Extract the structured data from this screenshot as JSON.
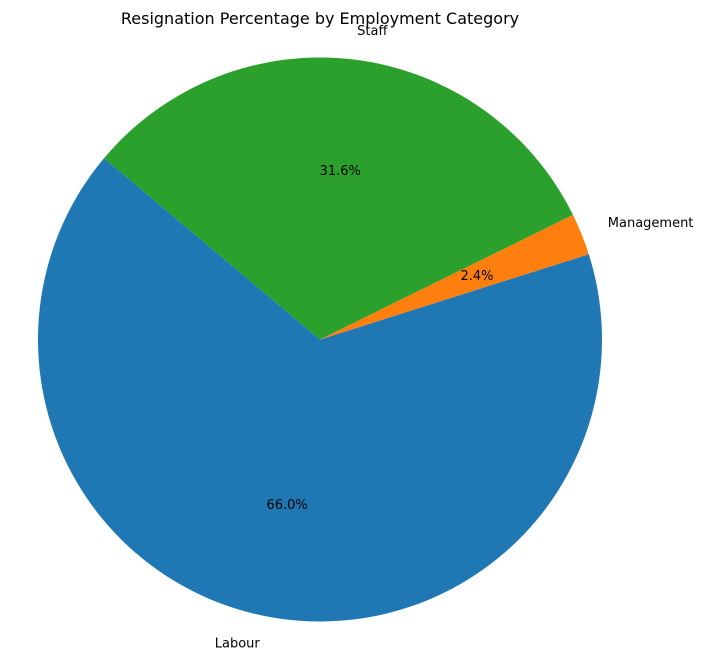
{
  "chart_data": {
    "type": "pie",
    "title": "Resignation Percentage by Employment Category",
    "slices": [
      {
        "label": "Labour",
        "value": 66.0,
        "pct_label": "66.0%",
        "color": "#1f77b4"
      },
      {
        "label": "Management",
        "value": 2.4,
        "pct_label": "2.4%",
        "color": "#ff7f0e"
      },
      {
        "label": "Staff",
        "value": 31.6,
        "pct_label": "31.6%",
        "color": "#2ca02c"
      }
    ],
    "start_angle_deg": 140,
    "direction": "counterclockwise",
    "legend": "none"
  }
}
